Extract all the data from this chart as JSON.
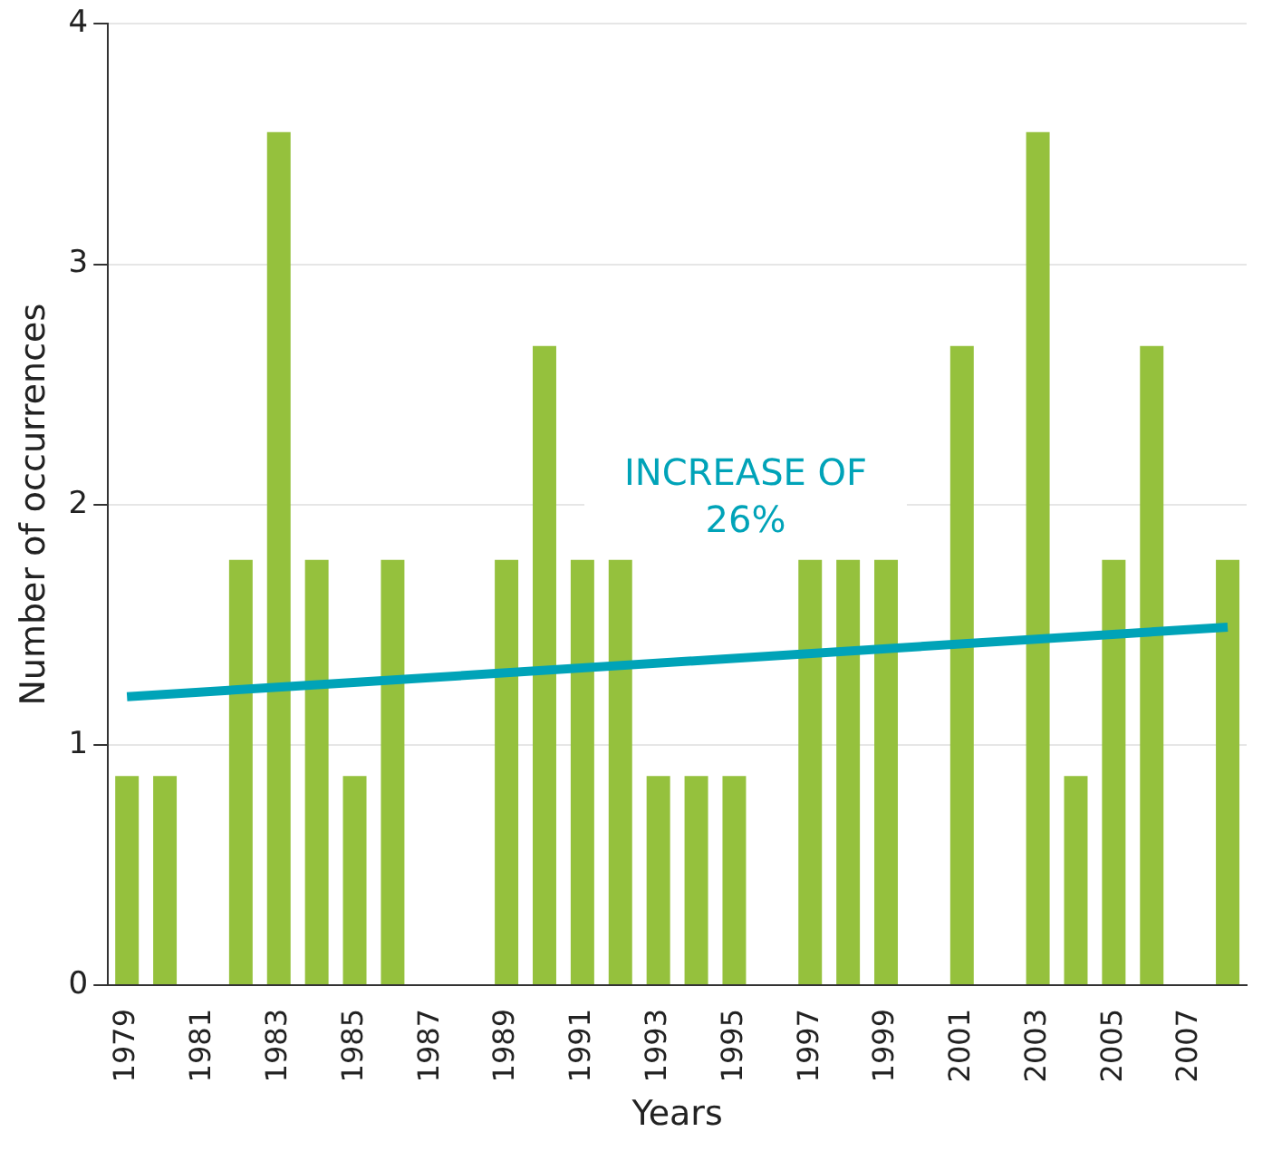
{
  "chart_data": {
    "type": "bar",
    "xlabel": "Years",
    "ylabel": "Number of occurrences",
    "categories": [
      "1979",
      null,
      "1981",
      null,
      "1983",
      null,
      "1985",
      null,
      "1987",
      null,
      "1989",
      null,
      "1991",
      null,
      "1993",
      null,
      "1995",
      null,
      "1997",
      null,
      "1999",
      null,
      "2001",
      null,
      "2003",
      null,
      "2005",
      null,
      "2007",
      null
    ],
    "series": [
      {
        "color": "#95c13d",
        "values": [
          0.87,
          0.87,
          0,
          1.77,
          3.55,
          1.77,
          0.87,
          1.77,
          0,
          0,
          1.77,
          2.66,
          1.77,
          1.77,
          0.87,
          0.87,
          0.87,
          0,
          1.77,
          1.77,
          1.77,
          0,
          2.66,
          0,
          3.55,
          0.87,
          1.77,
          2.66,
          0,
          1.77
        ]
      },
      {
        "type": "line",
        "color": "#00a3b8",
        "values": [
          1.2,
          null,
          null,
          null,
          null,
          null,
          null,
          null,
          null,
          null,
          null,
          null,
          null,
          null,
          null,
          null,
          null,
          null,
          null,
          null,
          null,
          null,
          null,
          null,
          null,
          null,
          null,
          null,
          null,
          1.49
        ]
      }
    ],
    "ylim": [
      0,
      4
    ],
    "yticks": [
      0,
      1,
      2,
      3,
      4
    ],
    "grid": "y",
    "legend": false,
    "marker": "none",
    "annotations": [
      "INCREASE OF\n26%"
    ]
  }
}
